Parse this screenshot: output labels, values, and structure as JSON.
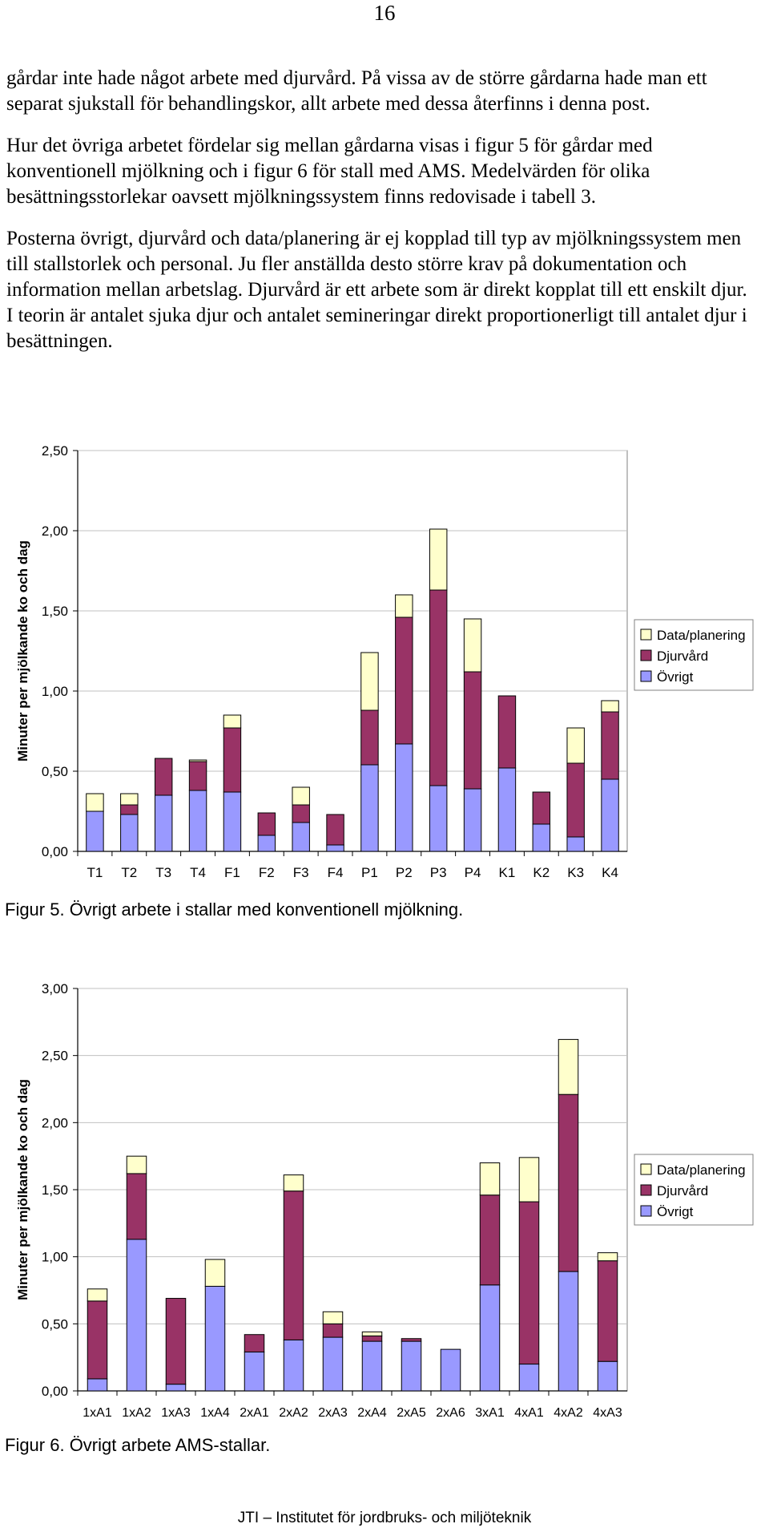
{
  "page_number": "16",
  "paragraphs": [
    "gårdar inte hade något arbete med djurvård. På vissa av de större gårdarna hade man ett separat sjukstall för behandlingskor, allt arbete med dessa återfinns i denna post.",
    "Hur det övriga arbetet fördelar sig mellan gårdarna visas i figur 5 för gårdar med konventionell mjölkning och i figur 6 för stall med AMS. Medelvärden för olika besättningsstorlekar oavsett mjölkningssystem finns redovisade i tabell 3.",
    "Posterna övrigt, djurvård och data/planering är ej kopplad till typ av mjölknings­system men till stallstorlek och personal. Ju fler anställda desto större krav på dokumentation och information mellan arbetslag. Djurvård är ett arbete som är direkt kopplat till ett enskilt djur. I teorin är antalet sjuka djur och antalet semi­neringar direkt proportionerligt till antalet djur i besättningen."
  ],
  "colors": {
    "ovrigt": "#9999ff",
    "djurvard": "#993366",
    "data_planering": "#ffffcc",
    "grid": "#c0c0c0",
    "axis": "#000000"
  },
  "chart_data": [
    {
      "type": "bar",
      "stacked": true,
      "caption": "Figur 5. Övrigt arbete i stallar med konventionell mjölkning.",
      "ylabel": "Minuter per mjölkande ko och dag",
      "xlabel": "",
      "ylim": [
        0,
        2.5
      ],
      "yticks": [
        "0,00",
        "0,50",
        "1,00",
        "1,50",
        "2,00",
        "2,50"
      ],
      "grid": true,
      "legend_position": "right",
      "categories": [
        "T1",
        "T2",
        "T3",
        "T4",
        "F1",
        "F2",
        "F3",
        "F4",
        "P1",
        "P2",
        "P3",
        "P4",
        "K1",
        "K2",
        "K3",
        "K4"
      ],
      "series": [
        {
          "name": "Övrigt",
          "color": "#9999ff",
          "values": [
            0.25,
            0.23,
            0.35,
            0.38,
            0.37,
            0.1,
            0.18,
            0.04,
            0.54,
            0.67,
            0.41,
            0.39,
            0.52,
            0.17,
            0.09,
            0.45
          ]
        },
        {
          "name": "Djurvård",
          "color": "#993366",
          "values": [
            0.0,
            0.06,
            0.23,
            0.18,
            0.4,
            0.14,
            0.11,
            0.19,
            0.34,
            0.79,
            1.22,
            0.73,
            0.45,
            0.2,
            0.46,
            0.42
          ]
        },
        {
          "name": "Data/planering",
          "color": "#ffffcc",
          "values": [
            0.11,
            0.07,
            0.0,
            0.01,
            0.08,
            0.0,
            0.11,
            0.0,
            0.36,
            0.14,
            0.38,
            0.33,
            0.0,
            0.0,
            0.22,
            0.07
          ]
        }
      ],
      "legend_order": [
        "Data/planering",
        "Djurvård",
        "Övrigt"
      ]
    },
    {
      "type": "bar",
      "stacked": true,
      "caption": "Figur 6. Övrigt arbete AMS-stallar.",
      "ylabel": "Minuter per mjölkande ko och dag",
      "xlabel": "",
      "ylim": [
        0,
        3.0
      ],
      "yticks": [
        "0,00",
        "0,50",
        "1,00",
        "1,50",
        "2,00",
        "2,50",
        "3,00"
      ],
      "grid": true,
      "legend_position": "right",
      "categories": [
        "1xA1",
        "1xA2",
        "1xA3",
        "1xA4",
        "2xA1",
        "2xA2",
        "2xA3",
        "2xA4",
        "2xA5",
        "2xA6",
        "3xA1",
        "4xA1",
        "4xA2",
        "4xA3"
      ],
      "series": [
        {
          "name": "Övrigt",
          "color": "#9999ff",
          "values": [
            0.09,
            1.13,
            0.05,
            0.78,
            0.29,
            0.38,
            0.4,
            0.37,
            0.37,
            0.31,
            0.79,
            0.2,
            0.89,
            0.22
          ]
        },
        {
          "name": "Djurvård",
          "color": "#993366",
          "values": [
            0.58,
            0.49,
            0.64,
            0.0,
            0.13,
            1.11,
            0.1,
            0.04,
            0.02,
            0.0,
            0.67,
            1.21,
            1.32,
            0.75
          ]
        },
        {
          "name": "Data/planering",
          "color": "#ffffcc",
          "values": [
            0.09,
            0.13,
            0.0,
            0.2,
            0.0,
            0.12,
            0.09,
            0.03,
            0.0,
            0.0,
            0.24,
            0.33,
            0.41,
            0.06
          ]
        }
      ],
      "legend_order": [
        "Data/planering",
        "Djurvård",
        "Övrigt"
      ]
    }
  ],
  "footer": "JTI – Institutet för jordbruks- och miljöteknik"
}
